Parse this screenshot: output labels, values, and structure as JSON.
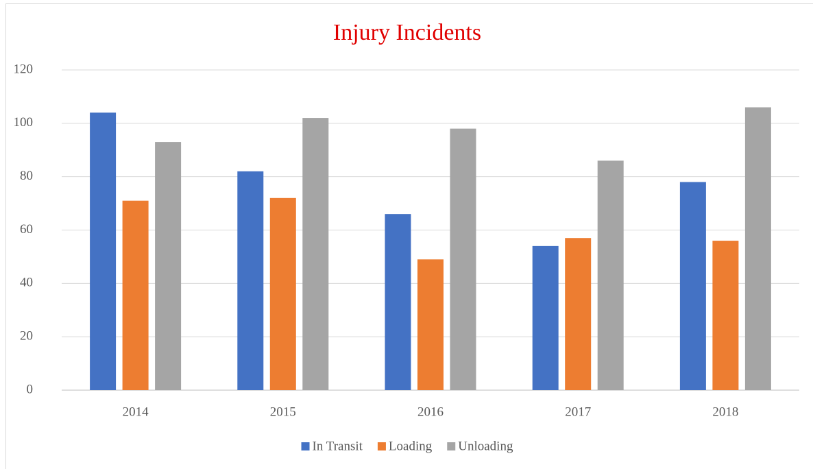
{
  "chart_data": {
    "type": "bar",
    "title": "Injury Incidents",
    "categories": [
      "2014",
      "2015",
      "2016",
      "2017",
      "2018"
    ],
    "series": [
      {
        "name": "In Transit",
        "color": "#4472c4",
        "values": [
          104,
          82,
          66,
          54,
          78
        ]
      },
      {
        "name": "Loading",
        "color": "#ed7d31",
        "values": [
          71,
          72,
          49,
          57,
          56
        ]
      },
      {
        "name": "Unloading",
        "color": "#a5a5a5",
        "values": [
          93,
          102,
          98,
          86,
          106
        ]
      }
    ],
    "ylim": [
      0,
      120
    ],
    "yticks": [
      0,
      20,
      40,
      60,
      80,
      100,
      120
    ],
    "grid": true,
    "legend": "bottom"
  }
}
